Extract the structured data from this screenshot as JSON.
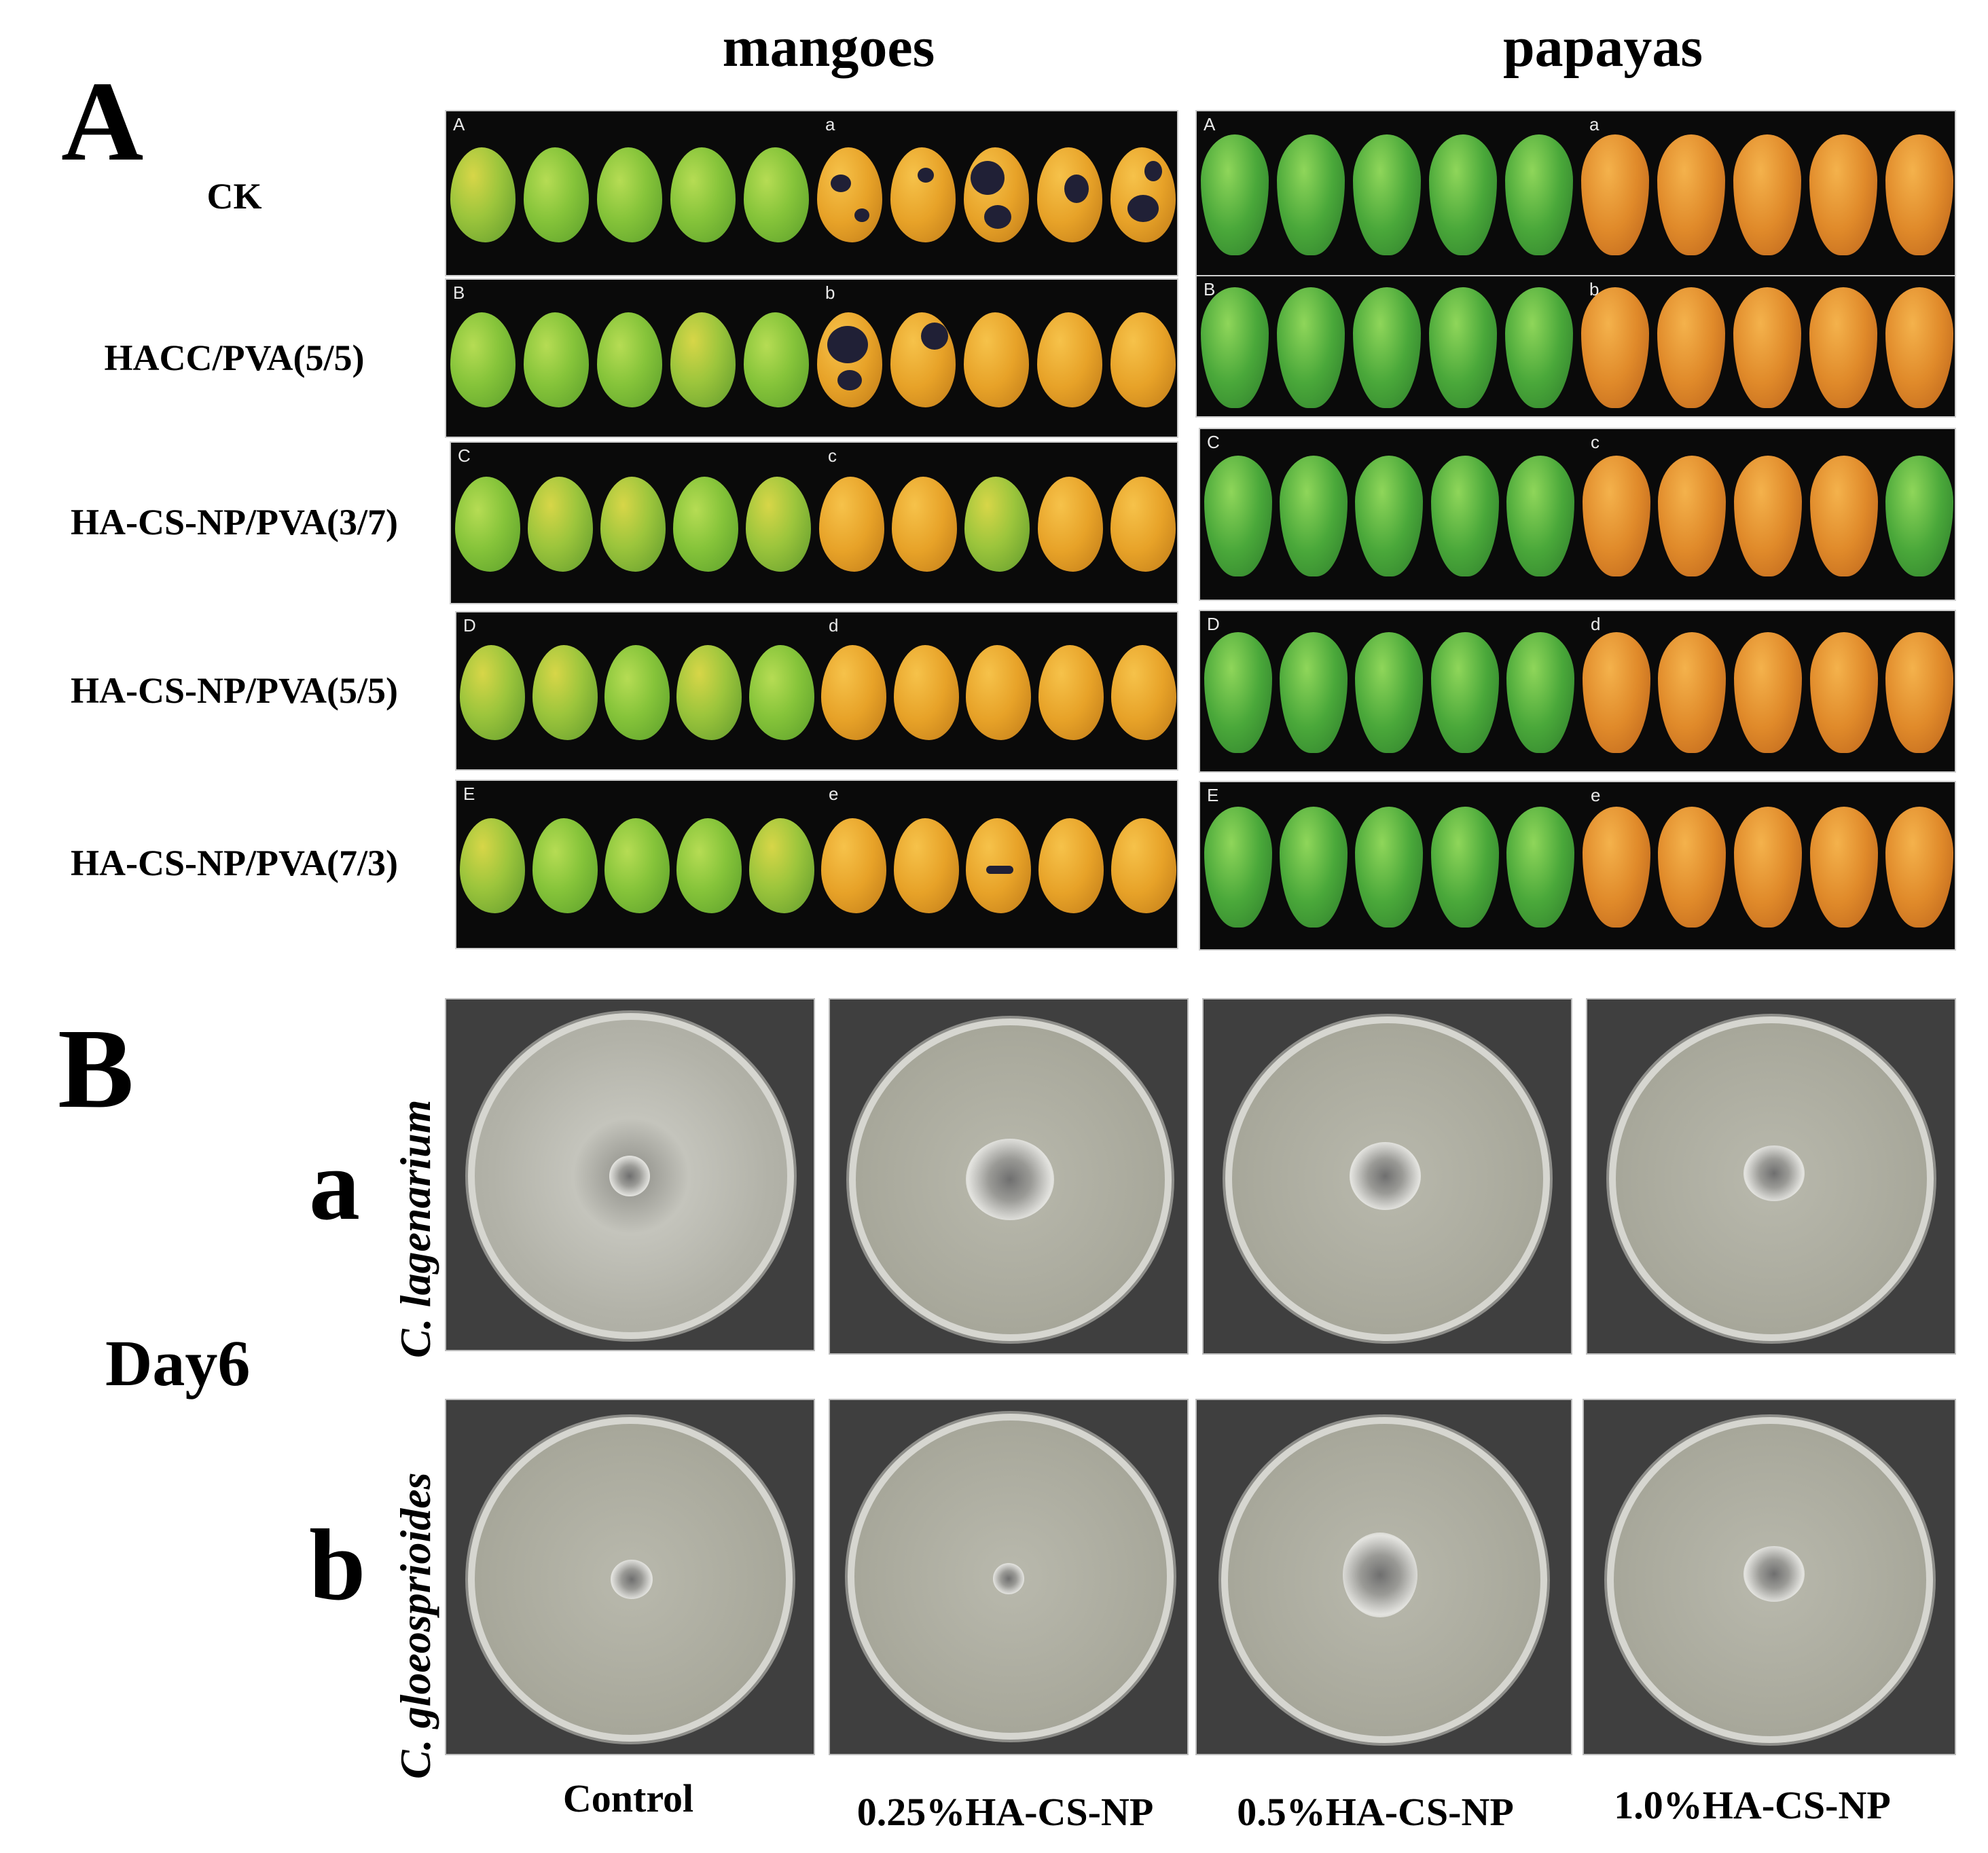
{
  "panel_a": {
    "letter": "A",
    "columns": [
      "mangoes",
      "papayas"
    ],
    "rows": [
      {
        "label": "CK",
        "before_tag": "A",
        "after_tag": "a"
      },
      {
        "label": "HACC/PVA(5/5)",
        "before_tag": "B",
        "after_tag": "b"
      },
      {
        "label": "HA-CS-NP/PVA(3/7)",
        "before_tag": "C",
        "after_tag": "c"
      },
      {
        "label": "HA-CS-NP/PVA(5/5)",
        "before_tag": "D",
        "after_tag": "d"
      },
      {
        "label": "HA-CS-NP/PVA(7/3)",
        "before_tag": "E",
        "after_tag": "e"
      }
    ]
  },
  "panel_b": {
    "letter": "B",
    "day_label": "Day6",
    "rows": [
      {
        "letter": "a",
        "species": "C. lagenarium"
      },
      {
        "letter": "b",
        "species": "C. gloeosprioides"
      }
    ],
    "columns": [
      "Control",
      "0.25%HA-CS-NP",
      "0.5%HA-CS-NP",
      "1.0%HA-CS-NP"
    ]
  }
}
